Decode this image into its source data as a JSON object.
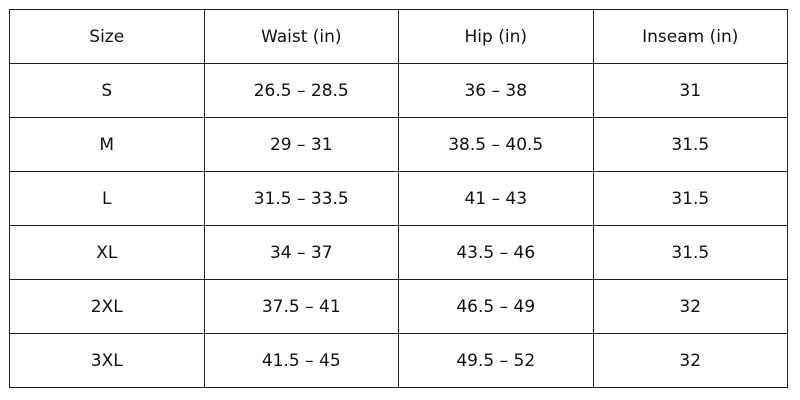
{
  "table": {
    "header": [
      "Size",
      "Waist (in)",
      "Hip (in)",
      "Inseam (in)"
    ],
    "rows": [
      [
        "S",
        "26.5 – 28.5",
        "36 – 38",
        "31"
      ],
      [
        "M",
        "29 – 31",
        "38.5 – 40.5",
        "31.5"
      ],
      [
        "L",
        "31.5 – 33.5",
        "41 – 43",
        "31.5"
      ],
      [
        "XL",
        "34 – 37",
        "43.5 – 46",
        "31.5"
      ],
      [
        "2XL",
        "37.5 – 41",
        "46.5 – 49",
        "32"
      ],
      [
        "3XL",
        "41.5 – 45",
        "49.5 – 52",
        "32"
      ]
    ]
  }
}
